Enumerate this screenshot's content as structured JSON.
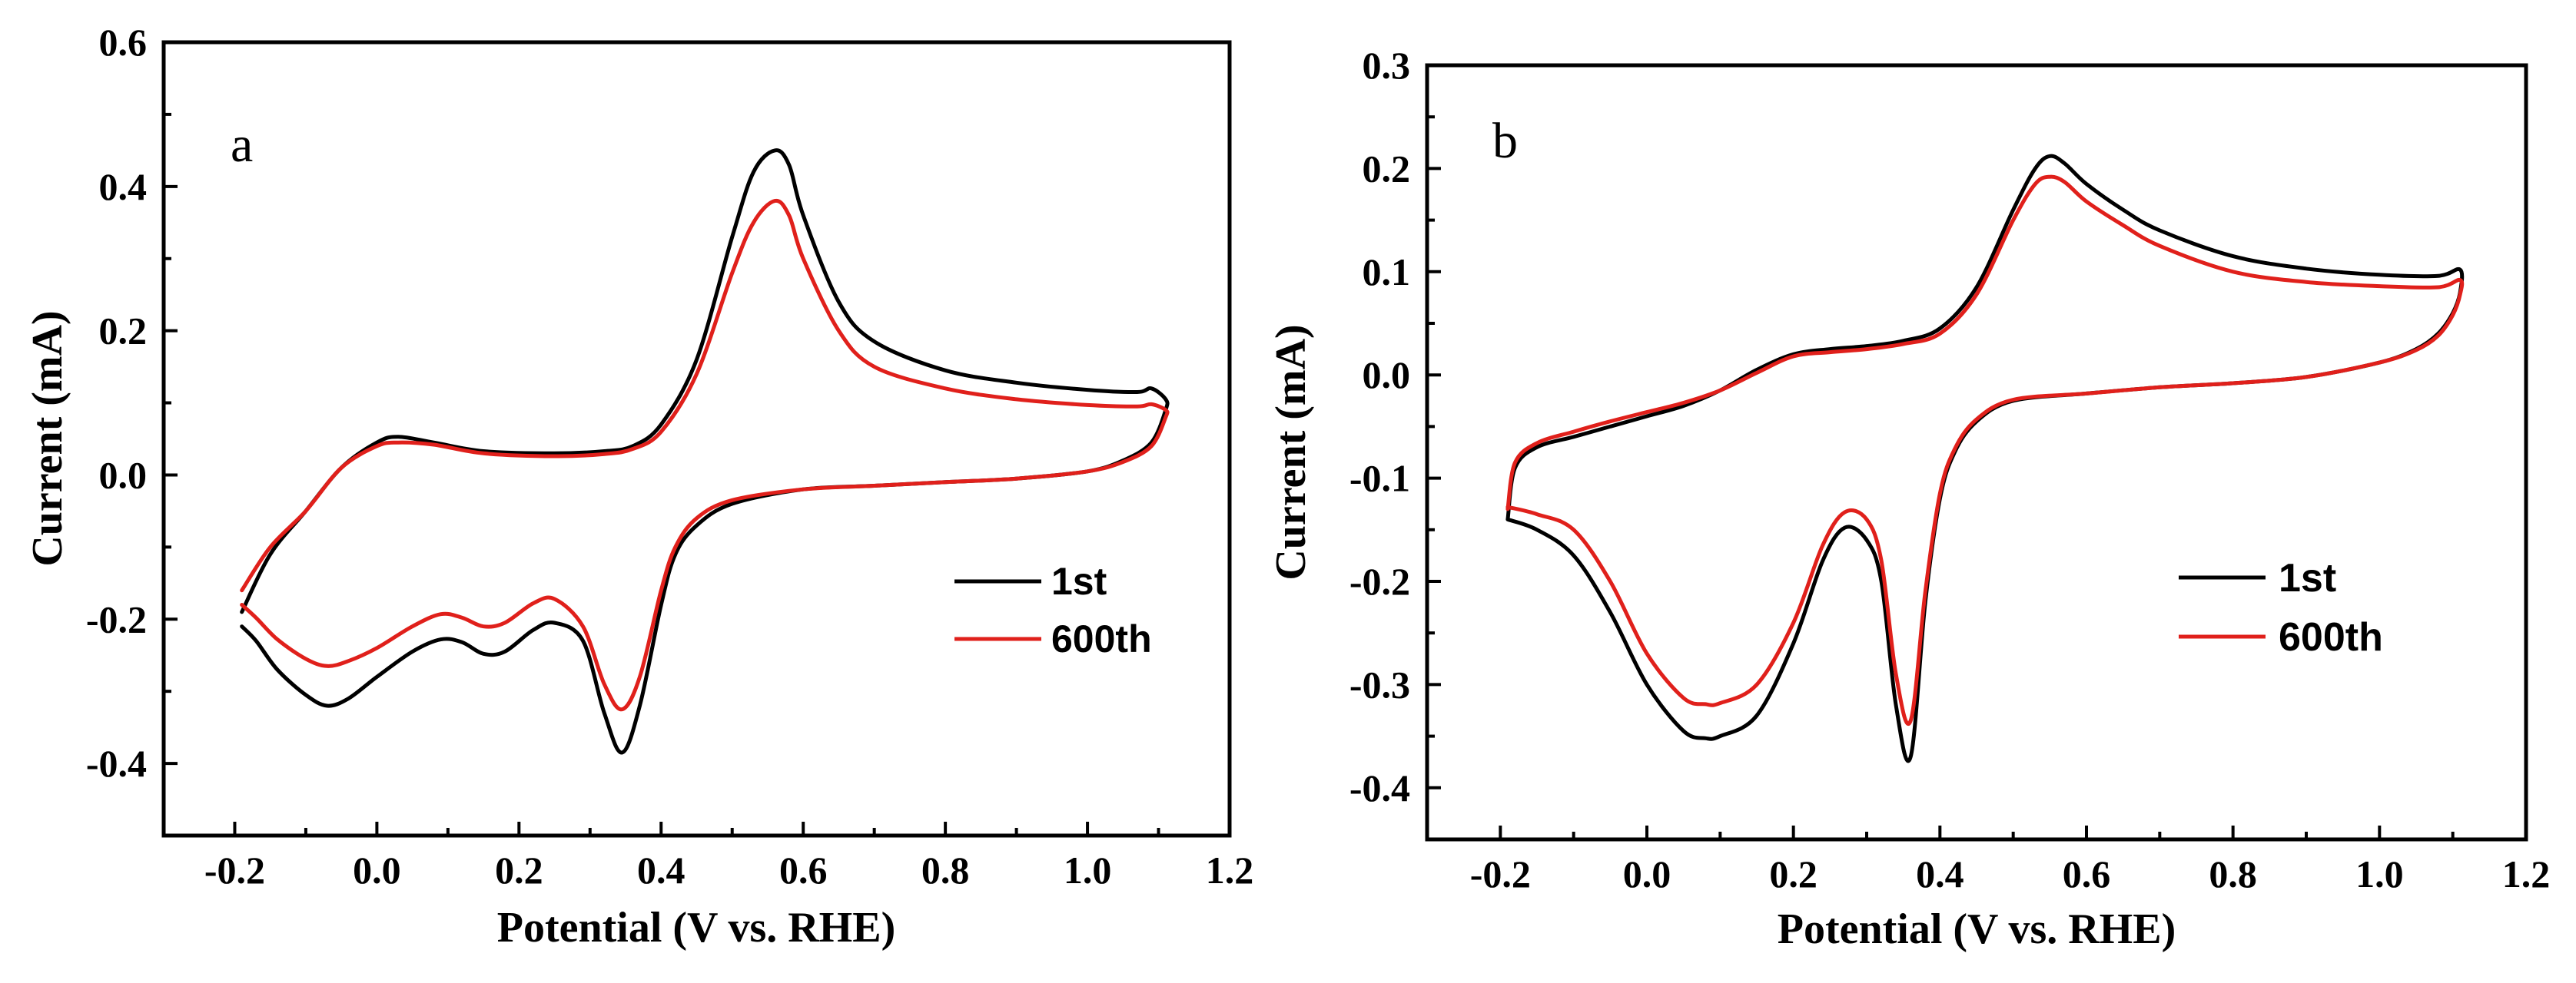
{
  "chart_data": [
    {
      "type": "line",
      "panel_label": "a",
      "xlabel": "Potential (V vs. RHE)",
      "ylabel": "Current (mA)",
      "xlim": [
        -0.3,
        1.2
      ],
      "ylim": [
        -0.5,
        0.6
      ],
      "xticks": [
        -0.2,
        0.0,
        0.2,
        0.4,
        0.6,
        0.8,
        1.0,
        1.2
      ],
      "xtick_labels": [
        "-0.2",
        "0.0",
        "0.2",
        "0.4",
        "0.6",
        "0.8",
        "1.0",
        "1.2"
      ],
      "yticks": [
        -0.4,
        -0.2,
        0.0,
        0.2,
        0.4,
        0.6
      ],
      "ytick_labels": [
        "-0.4",
        "-0.2",
        "0.0",
        "0.2",
        "0.4",
        "0.6"
      ],
      "grid": false,
      "legend_position": "center-right",
      "series": [
        {
          "name": "1st",
          "color": "#000000",
          "x": [
            -0.19,
            -0.15,
            -0.1,
            -0.05,
            0.0,
            0.03,
            0.08,
            0.15,
            0.25,
            0.32,
            0.36,
            0.4,
            0.45,
            0.5,
            0.53,
            0.56,
            0.58,
            0.6,
            0.65,
            0.7,
            0.8,
            0.9,
            1.0,
            1.07,
            1.09,
            1.11,
            1.11,
            1.09,
            1.05,
            1.0,
            0.9,
            0.8,
            0.7,
            0.6,
            0.5,
            0.45,
            0.42,
            0.4,
            0.37,
            0.345,
            0.32,
            0.29,
            0.25,
            0.22,
            0.18,
            0.15,
            0.12,
            0.09,
            0.05,
            0.0,
            -0.04,
            -0.07,
            -0.1,
            -0.14,
            -0.17,
            -0.19
          ],
          "values": [
            -0.19,
            -0.11,
            -0.05,
            0.01,
            0.045,
            0.053,
            0.045,
            0.033,
            0.03,
            0.033,
            0.04,
            0.07,
            0.16,
            0.33,
            0.42,
            0.45,
            0.43,
            0.36,
            0.24,
            0.185,
            0.145,
            0.128,
            0.118,
            0.115,
            0.12,
            0.105,
            0.09,
            0.045,
            0.02,
            0.005,
            -0.005,
            -0.01,
            -0.015,
            -0.02,
            -0.04,
            -0.07,
            -0.11,
            -0.18,
            -0.32,
            -0.385,
            -0.33,
            -0.23,
            -0.205,
            -0.215,
            -0.245,
            -0.248,
            -0.232,
            -0.228,
            -0.245,
            -0.28,
            -0.31,
            -0.32,
            -0.305,
            -0.27,
            -0.23,
            -0.21
          ]
        },
        {
          "name": "600th",
          "color": "#e0201b",
          "x": [
            -0.19,
            -0.15,
            -0.1,
            -0.05,
            0.0,
            0.03,
            0.08,
            0.15,
            0.25,
            0.32,
            0.36,
            0.4,
            0.45,
            0.5,
            0.53,
            0.56,
            0.58,
            0.6,
            0.65,
            0.7,
            0.8,
            0.9,
            1.0,
            1.07,
            1.09,
            1.11,
            1.11,
            1.09,
            1.05,
            1.0,
            0.9,
            0.8,
            0.7,
            0.6,
            0.5,
            0.45,
            0.42,
            0.4,
            0.37,
            0.345,
            0.32,
            0.29,
            0.25,
            0.22,
            0.18,
            0.15,
            0.12,
            0.09,
            0.05,
            0.0,
            -0.04,
            -0.07,
            -0.1,
            -0.14,
            -0.17,
            -0.19
          ],
          "values": [
            -0.16,
            -0.1,
            -0.05,
            0.01,
            0.04,
            0.045,
            0.042,
            0.03,
            0.026,
            0.029,
            0.036,
            0.06,
            0.14,
            0.28,
            0.35,
            0.38,
            0.36,
            0.3,
            0.2,
            0.15,
            0.12,
            0.105,
            0.097,
            0.095,
            0.098,
            0.09,
            0.08,
            0.04,
            0.018,
            0.005,
            -0.005,
            -0.01,
            -0.015,
            -0.02,
            -0.035,
            -0.06,
            -0.1,
            -0.16,
            -0.28,
            -0.325,
            -0.29,
            -0.21,
            -0.172,
            -0.178,
            -0.205,
            -0.21,
            -0.198,
            -0.193,
            -0.21,
            -0.24,
            -0.258,
            -0.265,
            -0.255,
            -0.228,
            -0.198,
            -0.18
          ]
        }
      ]
    },
    {
      "type": "line",
      "panel_label": "b",
      "xlabel": "Potential (V vs. RHE)",
      "ylabel": "Current (mA)",
      "xlim": [
        -0.3,
        1.2
      ],
      "ylim": [
        -0.45,
        0.3
      ],
      "xticks": [
        -0.2,
        0.0,
        0.2,
        0.4,
        0.6,
        0.8,
        1.0,
        1.2
      ],
      "xtick_labels": [
        "-0.2",
        "0.0",
        "0.2",
        "0.4",
        "0.6",
        "0.8",
        "1.0",
        "1.2"
      ],
      "yticks": [
        -0.4,
        -0.3,
        -0.2,
        -0.1,
        0.0,
        0.1,
        0.2,
        0.3
      ],
      "ytick_labels": [
        "-0.4",
        "-0.3",
        "-0.2",
        "-0.1",
        "0.0",
        "0.1",
        "0.2",
        "0.3"
      ],
      "grid": false,
      "legend_position": "center-right",
      "series": [
        {
          "name": "1st",
          "color": "#000000",
          "x": [
            -0.19,
            -0.18,
            -0.15,
            -0.1,
            -0.05,
            0.0,
            0.05,
            0.1,
            0.15,
            0.2,
            0.25,
            0.3,
            0.35,
            0.4,
            0.45,
            0.5,
            0.53,
            0.55,
            0.57,
            0.6,
            0.65,
            0.7,
            0.8,
            0.9,
            1.0,
            1.08,
            1.11,
            1.11,
            1.1,
            1.08,
            1.05,
            1.0,
            0.9,
            0.8,
            0.7,
            0.6,
            0.5,
            0.45,
            0.42,
            0.4,
            0.38,
            0.36,
            0.34,
            0.32,
            0.3,
            0.27,
            0.24,
            0.2,
            0.15,
            0.1,
            0.08,
            0.05,
            0.0,
            -0.05,
            -0.1,
            -0.15,
            -0.19
          ],
          "values": [
            -0.14,
            -0.09,
            -0.07,
            -0.06,
            -0.05,
            -0.04,
            -0.03,
            -0.015,
            0.005,
            0.02,
            0.025,
            0.028,
            0.033,
            0.045,
            0.085,
            0.16,
            0.2,
            0.212,
            0.205,
            0.185,
            0.16,
            0.14,
            0.115,
            0.103,
            0.097,
            0.096,
            0.102,
            0.08,
            0.06,
            0.04,
            0.025,
            0.012,
            -0.002,
            -0.008,
            -0.012,
            -0.018,
            -0.025,
            -0.045,
            -0.075,
            -0.12,
            -0.22,
            -0.37,
            -0.32,
            -0.2,
            -0.16,
            -0.148,
            -0.18,
            -0.26,
            -0.33,
            -0.35,
            -0.352,
            -0.345,
            -0.3,
            -0.23,
            -0.175,
            -0.15,
            -0.14
          ]
        },
        {
          "name": "600th",
          "color": "#e0201b",
          "x": [
            -0.19,
            -0.18,
            -0.15,
            -0.1,
            -0.05,
            0.0,
            0.05,
            0.1,
            0.15,
            0.2,
            0.25,
            0.3,
            0.35,
            0.4,
            0.45,
            0.5,
            0.53,
            0.55,
            0.57,
            0.6,
            0.65,
            0.7,
            0.8,
            0.9,
            1.0,
            1.08,
            1.11,
            1.11,
            1.1,
            1.08,
            1.05,
            1.0,
            0.9,
            0.8,
            0.7,
            0.6,
            0.5,
            0.45,
            0.42,
            0.4,
            0.38,
            0.36,
            0.34,
            0.32,
            0.3,
            0.27,
            0.24,
            0.2,
            0.15,
            0.1,
            0.08,
            0.05,
            0.0,
            -0.05,
            -0.1,
            -0.15,
            -0.19
          ],
          "values": [
            -0.13,
            -0.085,
            -0.066,
            -0.055,
            -0.045,
            -0.036,
            -0.027,
            -0.015,
            0.002,
            0.018,
            0.022,
            0.025,
            0.03,
            0.04,
            0.078,
            0.15,
            0.185,
            0.192,
            0.187,
            0.168,
            0.145,
            0.125,
            0.1,
            0.09,
            0.086,
            0.085,
            0.092,
            0.078,
            0.058,
            0.038,
            0.024,
            0.012,
            -0.002,
            -0.008,
            -0.012,
            -0.018,
            -0.024,
            -0.043,
            -0.072,
            -0.115,
            -0.21,
            -0.335,
            -0.29,
            -0.18,
            -0.14,
            -0.133,
            -0.165,
            -0.24,
            -0.3,
            -0.318,
            -0.319,
            -0.313,
            -0.27,
            -0.2,
            -0.15,
            -0.135,
            -0.128
          ]
        }
      ]
    }
  ]
}
